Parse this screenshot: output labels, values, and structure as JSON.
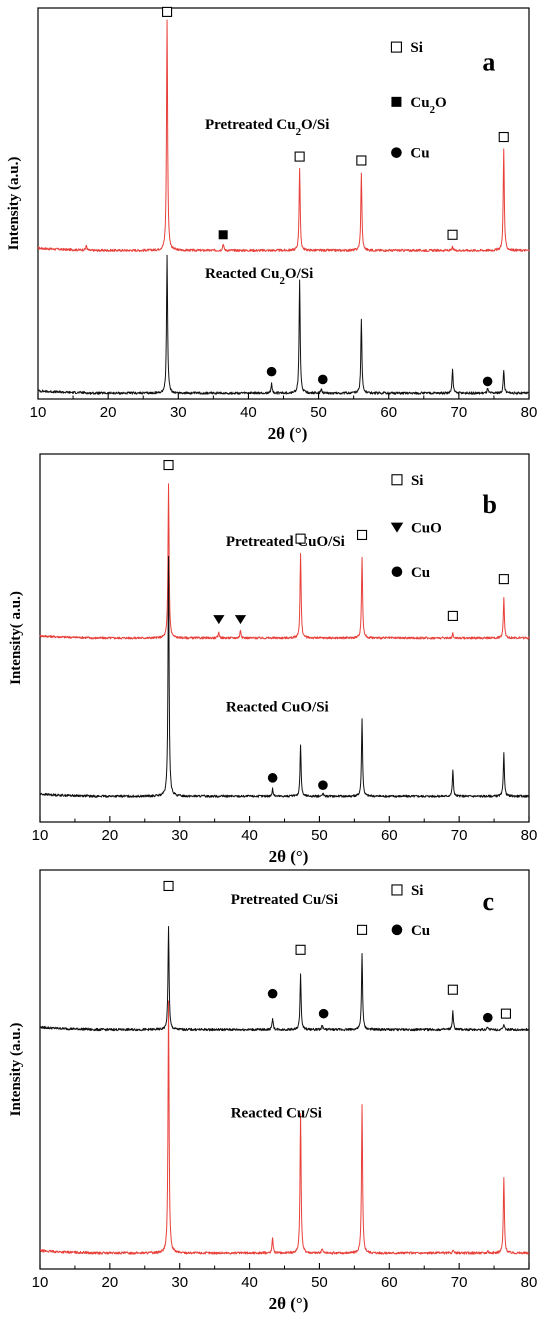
{
  "chart_data": [
    {
      "type": "line",
      "panel_label": "a",
      "xlabel": "2θ (°)",
      "ylabel": "Intensity (a.u.)",
      "xlim": [
        10,
        80
      ],
      "xticks": [
        10,
        20,
        30,
        40,
        50,
        60,
        70,
        80
      ],
      "legend_position": "top-right",
      "legend": [
        {
          "marker": "open-square",
          "label": "Si"
        },
        {
          "marker": "filled-square",
          "label": "Cu",
          "sub": "2",
          "label_after": "O"
        },
        {
          "marker": "filled-circle",
          "label": "Cu"
        }
      ],
      "series": [
        {
          "label_pre": "Pretreated Cu",
          "label_sub": "2",
          "label_post": "O/Si",
          "color": "#e8403a",
          "baseline": 0.38,
          "peaks": [
            [
              16.9,
              0.012
            ],
            [
              28.4,
              0.59
            ],
            [
              36.4,
              0.018
            ],
            [
              47.3,
              0.21
            ],
            [
              56.1,
              0.2
            ],
            [
              69.1,
              0.008
            ],
            [
              76.4,
              0.26
            ]
          ]
        },
        {
          "label_pre": "Reacted Cu",
          "label_sub": "2",
          "label_post": "O/Si",
          "color": "#111111",
          "baseline": 0.015,
          "peaks": [
            [
              28.4,
              0.35
            ],
            [
              43.3,
              0.025
            ],
            [
              47.3,
              0.29
            ],
            [
              50.4,
              0.01
            ],
            [
              56.1,
              0.19
            ],
            [
              69.1,
              0.06
            ],
            [
              74.1,
              0.012
            ],
            [
              76.4,
              0.06
            ]
          ]
        }
      ],
      "markers": [
        {
          "x": 28.4,
          "y": 0.99,
          "shape": "open-square"
        },
        {
          "x": 47.3,
          "y": 0.62,
          "shape": "open-square"
        },
        {
          "x": 56.1,
          "y": 0.61,
          "shape": "open-square"
        },
        {
          "x": 69.1,
          "y": 0.42,
          "shape": "open-square"
        },
        {
          "x": 76.4,
          "y": 0.67,
          "shape": "open-square"
        },
        {
          "x": 36.4,
          "y": 0.42,
          "shape": "filled-square"
        },
        {
          "x": 43.3,
          "y": 0.07,
          "shape": "filled-circle"
        },
        {
          "x": 50.6,
          "y": 0.05,
          "shape": "filled-circle"
        },
        {
          "x": 74.1,
          "y": 0.045,
          "shape": "filled-circle"
        }
      ]
    },
    {
      "type": "line",
      "panel_label": "b",
      "xlabel": "2θ (°)",
      "ylabel": "Intensity( a.u.)",
      "xlim": [
        10,
        80
      ],
      "xticks": [
        10,
        20,
        30,
        40,
        50,
        60,
        70,
        80
      ],
      "legend_position": "top-right",
      "legend": [
        {
          "marker": "open-square",
          "label": "Si"
        },
        {
          "marker": "filled-triangle-down",
          "label": "CuO"
        },
        {
          "marker": "filled-circle",
          "label": "Cu"
        }
      ],
      "series": [
        {
          "label_pre": "Pretreated CuO/Si",
          "label_sub": "",
          "label_post": "",
          "color": "#e8403a",
          "baseline": 0.5,
          "peaks": [
            [
              28.4,
              0.42
            ],
            [
              35.6,
              0.016
            ],
            [
              38.7,
              0.022
            ],
            [
              47.3,
              0.23
            ],
            [
              56.1,
              0.22
            ],
            [
              69.1,
              0.012
            ],
            [
              76.4,
              0.11
            ]
          ]
        },
        {
          "label_pre": "Reacted CuO/Si",
          "label_sub": "",
          "label_post": "",
          "color": "#111111",
          "baseline": 0.07,
          "peaks": [
            [
              28.4,
              0.65
            ],
            [
              43.3,
              0.02
            ],
            [
              47.3,
              0.14
            ],
            [
              50.5,
              0.008
            ],
            [
              56.1,
              0.21
            ],
            [
              69.1,
              0.07
            ],
            [
              76.4,
              0.12
            ]
          ]
        }
      ],
      "markers": [
        {
          "x": 28.4,
          "y": 0.97,
          "shape": "open-square"
        },
        {
          "x": 47.3,
          "y": 0.77,
          "shape": "open-square"
        },
        {
          "x": 56.1,
          "y": 0.78,
          "shape": "open-square"
        },
        {
          "x": 69.1,
          "y": 0.56,
          "shape": "open-square"
        },
        {
          "x": 76.4,
          "y": 0.66,
          "shape": "open-square"
        },
        {
          "x": 35.6,
          "y": 0.55,
          "shape": "filled-triangle-down"
        },
        {
          "x": 38.7,
          "y": 0.55,
          "shape": "filled-triangle-down"
        },
        {
          "x": 43.3,
          "y": 0.12,
          "shape": "filled-circle"
        },
        {
          "x": 50.5,
          "y": 0.1,
          "shape": "filled-circle"
        }
      ]
    },
    {
      "type": "line",
      "panel_label": "c",
      "xlabel": "2θ (°)",
      "ylabel": "Intensity (a.u.)",
      "xlim": [
        10,
        80
      ],
      "xticks": [
        10,
        20,
        30,
        40,
        50,
        60,
        70,
        80
      ],
      "legend_position": "top-right",
      "legend": [
        {
          "marker": "open-square",
          "label": "Si"
        },
        {
          "marker": "filled-circle",
          "label": "Cu"
        }
      ],
      "series": [
        {
          "label_pre": "Pretreated Cu/Si",
          "label_sub": "",
          "label_post": "",
          "color": "#111111",
          "baseline": 0.6,
          "peaks": [
            [
              28.4,
              0.26
            ],
            [
              43.3,
              0.03
            ],
            [
              47.3,
              0.14
            ],
            [
              50.4,
              0.012
            ],
            [
              56.1,
              0.19
            ],
            [
              69.1,
              0.045
            ],
            [
              74.1,
              0.008
            ],
            [
              76.4,
              0.012
            ]
          ]
        },
        {
          "label_pre": "Reacted Cu/Si",
          "label_sub": "",
          "label_post": "",
          "color": "#e8403a",
          "baseline": 0.04,
          "peaks": [
            [
              28.4,
              0.63
            ],
            [
              43.3,
              0.04
            ],
            [
              47.3,
              0.35
            ],
            [
              50.4,
              0.012
            ],
            [
              56.1,
              0.37
            ],
            [
              69.1,
              0.006
            ],
            [
              74.1,
              0.006
            ],
            [
              76.4,
              0.19
            ]
          ]
        }
      ],
      "markers": [
        {
          "x": 28.4,
          "y": 0.96,
          "shape": "open-square"
        },
        {
          "x": 47.3,
          "y": 0.8,
          "shape": "open-square"
        },
        {
          "x": 56.1,
          "y": 0.85,
          "shape": "open-square"
        },
        {
          "x": 69.1,
          "y": 0.7,
          "shape": "open-square"
        },
        {
          "x": 76.7,
          "y": 0.64,
          "shape": "open-square"
        },
        {
          "x": 43.3,
          "y": 0.69,
          "shape": "filled-circle"
        },
        {
          "x": 50.6,
          "y": 0.64,
          "shape": "filled-circle"
        },
        {
          "x": 74.1,
          "y": 0.63,
          "shape": "filled-circle"
        }
      ]
    }
  ]
}
